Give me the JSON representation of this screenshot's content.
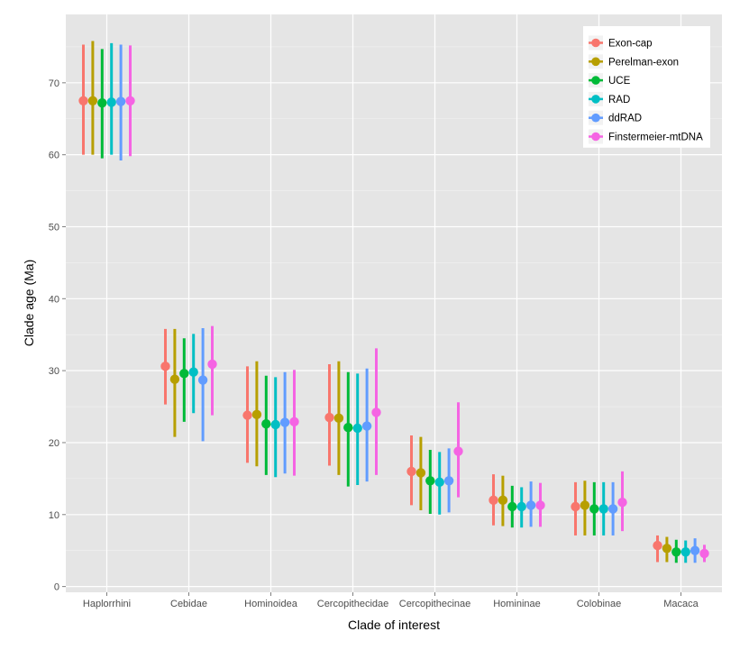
{
  "chart_data": {
    "type": "scatter",
    "subtype": "point-range",
    "title": "",
    "xlabel": "Clade of interest",
    "ylabel": "Clade age (Ma)",
    "categories": [
      "Haplorrhini",
      "Cebidae",
      "Hominoidea",
      "Cercopithecidae",
      "Cercopithecinae",
      "Homininae",
      "Colobinae",
      "Macaca"
    ],
    "yticks": [
      0,
      10,
      20,
      30,
      40,
      50,
      60,
      70
    ],
    "ylim": [
      -0.8,
      79.5
    ],
    "grid": true,
    "legend_position": "top-right",
    "series": [
      {
        "name": "Exon-cap",
        "color": "#f8766d",
        "mean": [
          67.5,
          30.6,
          23.8,
          23.5,
          16.0,
          12.0,
          11.1,
          5.7
        ],
        "lower": [
          60.0,
          25.3,
          17.2,
          16.8,
          11.3,
          8.5,
          7.1,
          3.4
        ],
        "upper": [
          75.3,
          35.8,
          30.6,
          30.9,
          21.0,
          15.6,
          14.5,
          7.1
        ]
      },
      {
        "name": "Perelman-exon",
        "color": "#b79f00",
        "mean": [
          67.5,
          28.8,
          23.9,
          23.4,
          15.8,
          12.0,
          11.3,
          5.3
        ],
        "lower": [
          60.0,
          20.8,
          16.7,
          15.5,
          10.6,
          8.4,
          7.1,
          3.4
        ],
        "upper": [
          75.8,
          35.8,
          31.3,
          31.3,
          20.8,
          15.4,
          14.7,
          6.9
        ]
      },
      {
        "name": "UCE",
        "color": "#00ba38",
        "mean": [
          67.2,
          29.6,
          22.6,
          22.1,
          14.7,
          11.1,
          10.8,
          4.8
        ],
        "lower": [
          59.5,
          22.9,
          15.5,
          13.9,
          10.1,
          8.2,
          7.1,
          3.3
        ],
        "upper": [
          74.7,
          34.5,
          29.3,
          29.8,
          19.0,
          14.0,
          14.5,
          6.5
        ]
      },
      {
        "name": "RAD",
        "color": "#00bfc4",
        "mean": [
          67.3,
          29.8,
          22.5,
          22.0,
          14.5,
          11.1,
          10.8,
          4.8
        ],
        "lower": [
          60.0,
          24.1,
          15.2,
          14.1,
          10.0,
          8.2,
          7.1,
          3.3
        ],
        "upper": [
          75.5,
          35.1,
          29.1,
          29.6,
          18.7,
          13.8,
          14.5,
          6.4
        ]
      },
      {
        "name": "ddRAD",
        "color": "#619cff",
        "mean": [
          67.4,
          28.7,
          22.8,
          22.3,
          14.7,
          11.3,
          10.8,
          5.0
        ],
        "lower": [
          59.2,
          20.2,
          15.7,
          14.6,
          10.3,
          8.3,
          7.1,
          3.3
        ],
        "upper": [
          75.3,
          35.9,
          29.8,
          30.3,
          19.2,
          14.6,
          14.5,
          6.7
        ]
      },
      {
        "name": "Finstermeier-mtDNA",
        "color": "#f564e3",
        "mean": [
          67.5,
          30.9,
          22.9,
          24.2,
          18.8,
          11.3,
          11.7,
          4.6
        ],
        "lower": [
          59.8,
          23.8,
          15.4,
          15.5,
          12.4,
          8.3,
          7.7,
          3.4
        ],
        "upper": [
          75.2,
          36.2,
          30.1,
          33.1,
          25.6,
          14.4,
          16.0,
          5.8
        ]
      }
    ]
  }
}
